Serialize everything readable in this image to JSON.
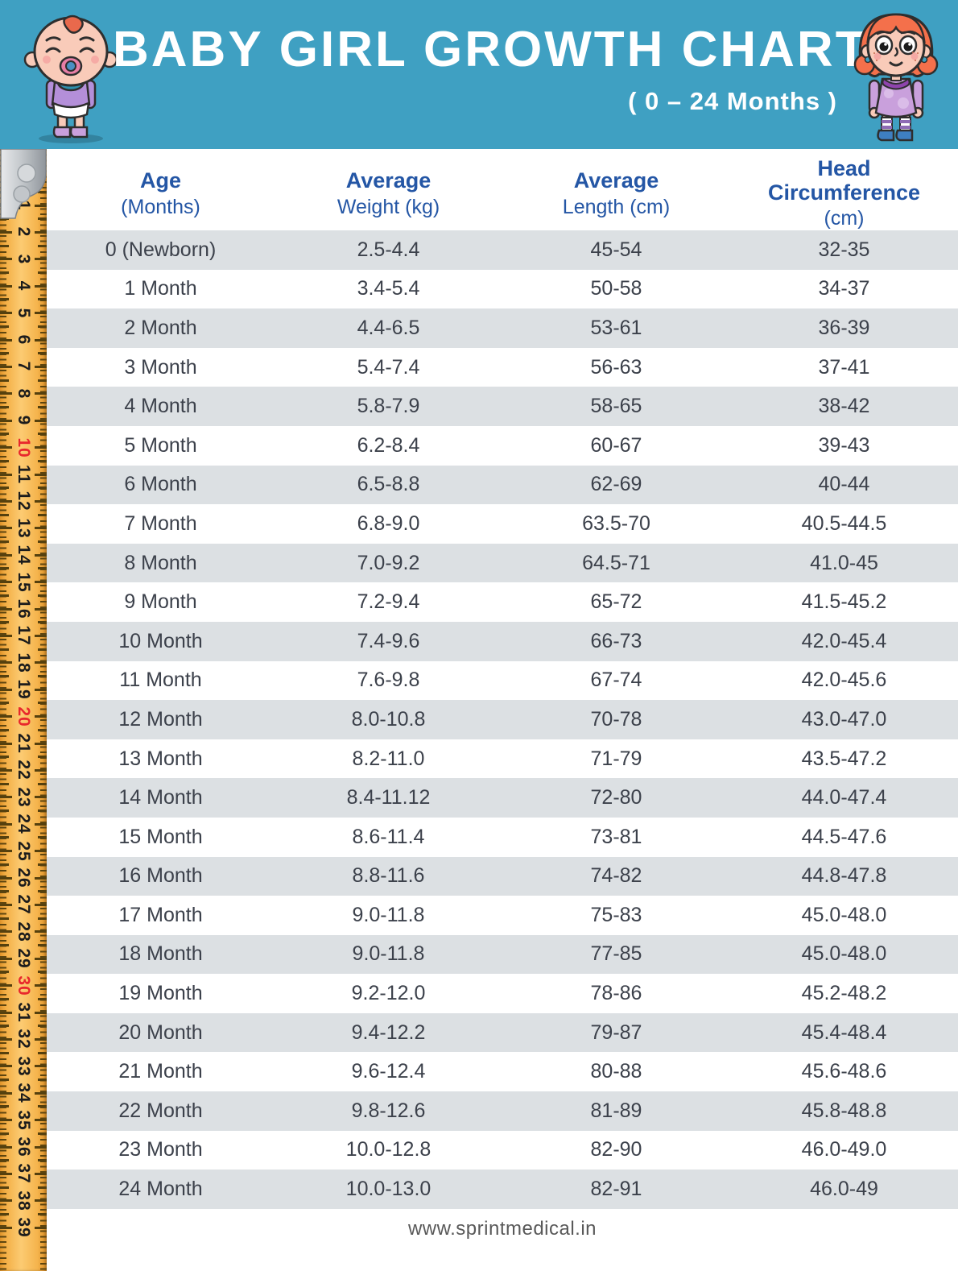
{
  "header": {
    "background_color": "#3FA0C2",
    "baby_icon": "baby-illustration",
    "girl_icon": "girl-illustration"
  },
  "chart_data": {
    "type": "table",
    "title": "BABY GIRL GROWTH CHART",
    "subtitle": "( 0 – 24 Months )",
    "columns": [
      {
        "label": "Age",
        "unit": "(Months)"
      },
      {
        "label": "Average",
        "unit": "Weight (kg)"
      },
      {
        "label": "Average",
        "unit": "Length (cm)"
      },
      {
        "label": "Head Circumference",
        "unit": "(cm)"
      }
    ],
    "rows": [
      [
        "0 (Newborn)",
        "2.5-4.4",
        "45-54",
        "32-35"
      ],
      [
        "1 Month",
        "3.4-5.4",
        "50-58",
        "34-37"
      ],
      [
        "2 Month",
        "4.4-6.5",
        "53-61",
        "36-39"
      ],
      [
        "3 Month",
        "5.4-7.4",
        "56-63",
        "37-41"
      ],
      [
        "4 Month",
        "5.8-7.9",
        "58-65",
        "38-42"
      ],
      [
        "5 Month",
        "6.2-8.4",
        "60-67",
        "39-43"
      ],
      [
        "6 Month",
        "6.5-8.8",
        "62-69",
        "40-44"
      ],
      [
        "7 Month",
        "6.8-9.0",
        "63.5-70",
        "40.5-44.5"
      ],
      [
        "8 Month",
        "7.0-9.2",
        "64.5-71",
        "41.0-45"
      ],
      [
        "9 Month",
        "7.2-9.4",
        "65-72",
        "41.5-45.2"
      ],
      [
        "10 Month",
        "7.4-9.6",
        "66-73",
        "42.0-45.4"
      ],
      [
        "11 Month",
        "7.6-9.8",
        "67-74",
        "42.0-45.6"
      ],
      [
        "12 Month",
        "8.0-10.8",
        "70-78",
        "43.0-47.0"
      ],
      [
        "13 Month",
        "8.2-11.0",
        "71-79",
        "43.5-47.2"
      ],
      [
        "14 Month",
        "8.4-11.12",
        "72-80",
        "44.0-47.4"
      ],
      [
        "15 Month",
        "8.6-11.4",
        "73-81",
        "44.5-47.6"
      ],
      [
        "16 Month",
        "8.8-11.6",
        "74-82",
        "44.8-47.8"
      ],
      [
        "17 Month",
        "9.0-11.8",
        "75-83",
        "45.0-48.0"
      ],
      [
        "18 Month",
        "9.0-11.8",
        "77-85",
        "45.0-48.0"
      ],
      [
        "19 Month",
        "9.2-12.0",
        "78-86",
        "45.2-48.2"
      ],
      [
        "20 Month",
        "9.4-12.2",
        "79-87",
        "45.4-48.4"
      ],
      [
        "21 Month",
        "9.6-12.4",
        "80-88",
        "45.6-48.6"
      ],
      [
        "22 Month",
        "9.8-12.6",
        "81-89",
        "45.8-48.8"
      ],
      [
        "23 Month",
        "10.0-12.8",
        "82-90",
        "46.0-49.0"
      ],
      [
        "24 Month",
        "10.0-13.0",
        "82-91",
        "46.0-49"
      ]
    ],
    "layout_hints": {
      "alternating_row_color": "#DCE0E3",
      "header_text_color": "#2456A5",
      "body_text_color": "#3C414B",
      "first_row_shaded": true
    }
  },
  "ruler": {
    "icon": "measuring-tape-ruler",
    "numbers": [
      1,
      2,
      3,
      4,
      5,
      6,
      7,
      8,
      9,
      10,
      11,
      12,
      13,
      14,
      15,
      16,
      17,
      18,
      19,
      20,
      21,
      22,
      23,
      24,
      25,
      26,
      27,
      28,
      29,
      30,
      31,
      32,
      33,
      34,
      35,
      36,
      37,
      38,
      39
    ],
    "red_numbers": [
      10,
      20,
      30
    ],
    "red_color": "#E8282C",
    "tape_color": "#F5B44D"
  },
  "footer": {
    "website": "www.sprintmedical.in"
  }
}
